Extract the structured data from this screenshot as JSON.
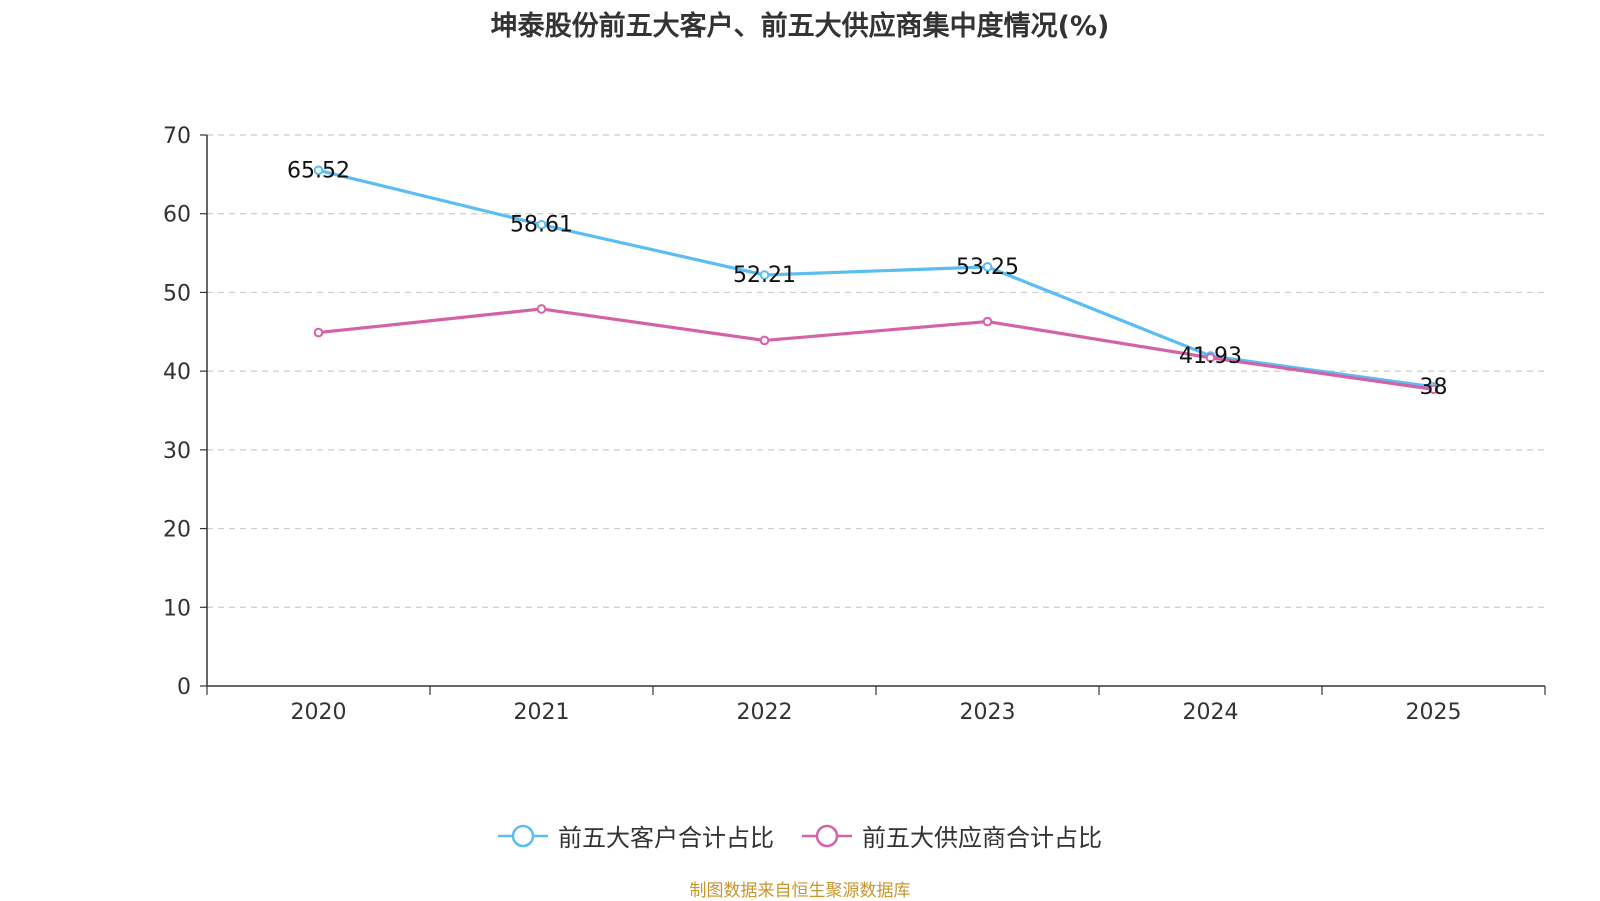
{
  "title": "坤泰股份前五大客户、前五大供应商集中度情况(%)",
  "chart_data": {
    "type": "line",
    "title": "坤泰股份前五大客户、前五大供应商集中度情况(%)",
    "categories": [
      "2020",
      "2021",
      "2022",
      "2023",
      "2024",
      "2025"
    ],
    "ylim": [
      0,
      70
    ],
    "yticks": [
      0,
      10,
      20,
      30,
      40,
      50,
      60,
      70
    ],
    "grid": true,
    "legend_position": "bottom",
    "series": [
      {
        "name": "前五大客户合计占比",
        "color": "#5bbdf2",
        "values": [
          65.52,
          58.61,
          52.21,
          53.25,
          41.93,
          38
        ],
        "labels": [
          "65.52",
          "58.61",
          "52.21",
          "53.25",
          "41.93",
          "38"
        ]
      },
      {
        "name": "前五大供应商合计占比",
        "color": "#d462a8",
        "values": [
          44.9,
          47.9,
          43.9,
          46.3,
          41.7,
          37.7
        ],
        "labels": []
      }
    ]
  },
  "source": "制图数据来自恒生聚源数据库"
}
